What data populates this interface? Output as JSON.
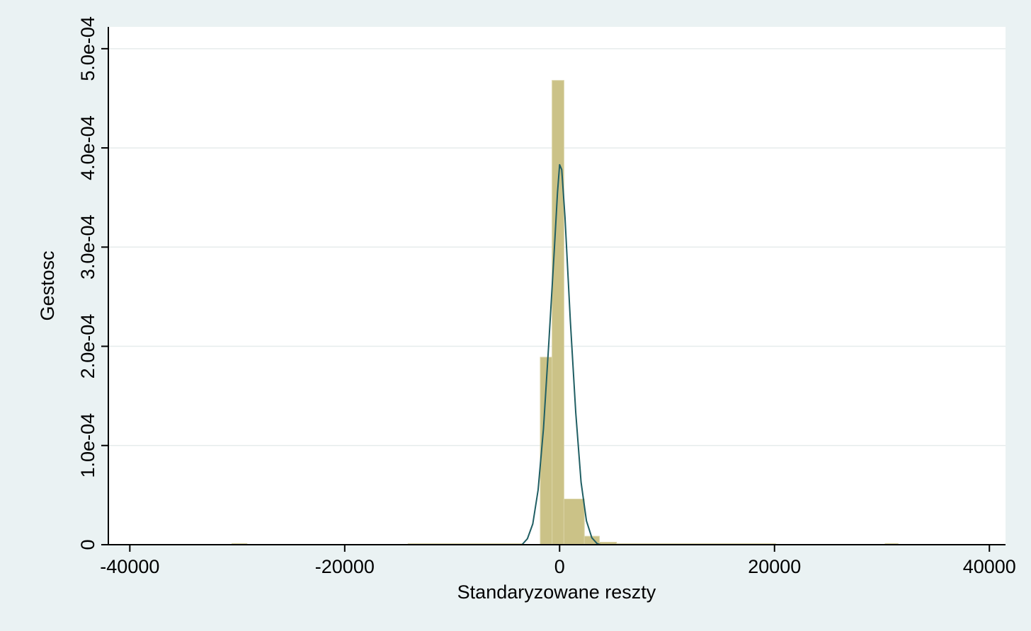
{
  "chart_data": {
    "type": "bar",
    "title": "",
    "xlabel": "Standaryzowane reszty",
    "ylabel": "Gestosc",
    "xlim": [
      -42000,
      41500
    ],
    "ylim": [
      0,
      0.000522
    ],
    "xticks": [
      -40000,
      -20000,
      0,
      20000,
      40000
    ],
    "xtick_labels": [
      "-40000",
      "-20000",
      "0",
      "20000",
      "40000"
    ],
    "yticks": [
      0,
      0.0001,
      0.0002,
      0.0003,
      0.0004,
      0.0005
    ],
    "ytick_labels": [
      "0",
      "1.0e-04",
      "2.0e-04",
      "3.0e-04",
      "4.0e-04",
      "5.0e-04"
    ],
    "grid": true,
    "bar_color": "#cbc287",
    "curve_color": "#1f5e63",
    "histogram": [
      {
        "x0": -30500,
        "x1": -29100,
        "value": 1.2e-06
      },
      {
        "x0": -14100,
        "x1": -3500,
        "value": 6e-07
      },
      {
        "x0": -1800,
        "x1": -700,
        "value": 0.000189
      },
      {
        "x0": -700,
        "x1": 400,
        "value": 0.000468
      },
      {
        "x0": 400,
        "x1": 2300,
        "value": 4.6e-05
      },
      {
        "x0": 2300,
        "x1": 3700,
        "value": 8.5e-06
      },
      {
        "x0": 3700,
        "x1": 5300,
        "value": 2.5e-06
      },
      {
        "x0": 5300,
        "x1": 20100,
        "value": 8e-07
      },
      {
        "x0": 30300,
        "x1": 31500,
        "value": 1.2e-06
      }
    ],
    "series": [
      {
        "type": "line",
        "points": [
          [
            -3500,
            0
          ],
          [
            -3000,
            6e-06
          ],
          [
            -2500,
            2.1e-05
          ],
          [
            -2000,
            5.5e-05
          ],
          [
            -1500,
            0.000117
          ],
          [
            -1000,
            0.000204
          ],
          [
            -500,
            0.000296
          ],
          [
            -200,
            0.000355
          ],
          [
            0,
            0.000383
          ],
          [
            200,
            0.000378
          ],
          [
            500,
            0.00033
          ],
          [
            1000,
            0.000225
          ],
          [
            1500,
            0.000133
          ],
          [
            2000,
            6.3e-05
          ],
          [
            2500,
            2.4e-05
          ],
          [
            3000,
            7e-06
          ],
          [
            3500,
            1e-06
          ],
          [
            3800,
            0
          ]
        ]
      }
    ]
  }
}
